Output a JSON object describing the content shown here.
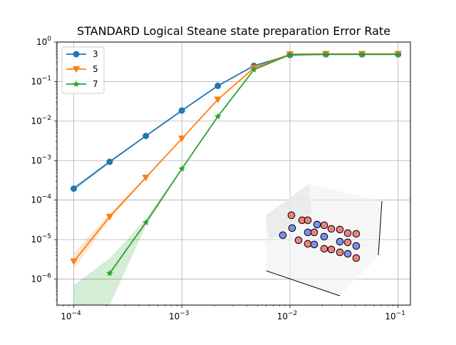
{
  "chart_data": {
    "type": "line",
    "title": "STANDARD Logical Steane state preparation Error Rate",
    "xlabel": "",
    "ylabel": "",
    "xscale": "log",
    "yscale": "log",
    "xlim": [
      7e-05,
      0.13
    ],
    "ylim": [
      2.2e-07,
      1.0
    ],
    "grid": true,
    "legend_position": "top-left",
    "x_tick_labels": [
      "10^-4",
      "10^-3",
      "10^-2",
      "10^-1"
    ],
    "y_tick_labels": [
      "10^0",
      "10^-1",
      "10^-2",
      "10^-3",
      "10^-4",
      "10^-5",
      "10^-6"
    ],
    "x": [
      0.0001,
      0.000215,
      0.000464,
      0.001,
      0.00215,
      0.00464,
      0.01,
      0.0215,
      0.0464,
      0.1
    ],
    "series": [
      {
        "name": "3",
        "color": "#1f77b4",
        "marker": "circle",
        "values": [
          0.000195,
          0.00093,
          0.0042,
          0.0185,
          0.078,
          0.25,
          0.47,
          0.49,
          0.49,
          0.49
        ],
        "band_lower": [
          0.00017,
          0.00087,
          0.00405,
          0.0181,
          0.077,
          0.245,
          0.465,
          0.485,
          0.485,
          0.485
        ],
        "band_upper": [
          0.00022,
          0.001,
          0.00435,
          0.0189,
          0.079,
          0.255,
          0.475,
          0.495,
          0.495,
          0.495
        ]
      },
      {
        "name": "5",
        "color": "#ff7f0e",
        "marker": "triangle-down",
        "values": [
          2.8e-06,
          3.8e-05,
          0.00037,
          0.0036,
          0.035,
          0.22,
          0.49,
          0.5,
          0.5,
          0.5
        ],
        "band_lower": [
          1.8e-06,
          3.3e-05,
          0.00035,
          0.0035,
          0.0345,
          0.218,
          0.485,
          0.495,
          0.495,
          0.495
        ],
        "band_upper": [
          4.5e-06,
          4.5e-05,
          0.00039,
          0.0037,
          0.0355,
          0.222,
          0.495,
          0.505,
          0.505,
          0.505
        ]
      },
      {
        "name": "7",
        "color": "#2ca02c",
        "marker": "star",
        "values": [
          null,
          1.4e-06,
          2.7e-05,
          0.00062,
          0.013,
          0.2,
          0.48,
          0.49,
          0.49,
          0.49
        ],
        "band_lower": [
          2.2e-07,
          2.2e-07,
          2.2e-05,
          0.0006,
          0.0128,
          0.198,
          0.475,
          0.485,
          0.485,
          0.485
        ],
        "band_upper": [
          7e-07,
          3.4e-06,
          3.3e-05,
          0.00064,
          0.0132,
          0.202,
          0.485,
          0.495,
          0.495,
          0.495
        ]
      }
    ]
  },
  "inset": {
    "description_icon": "code-lattice-3d-icon",
    "node_colors": {
      "red": "#f08080",
      "blue": "#7f8ff0"
    }
  }
}
